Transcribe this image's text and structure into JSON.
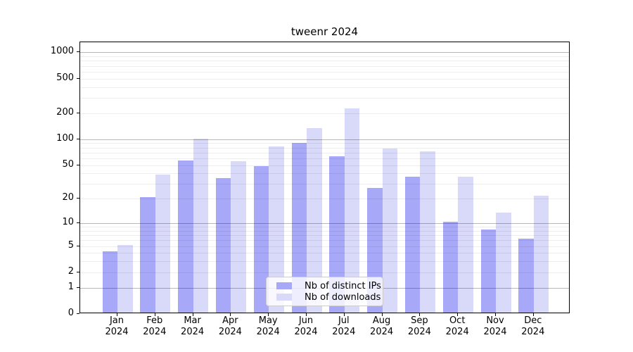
{
  "chart_data": {
    "type": "bar",
    "title": "tweenr 2024",
    "xlabel": "",
    "ylabel": "",
    "y_scale": "log1p",
    "ylim": [
      0,
      1280
    ],
    "grid": true,
    "legend_position": "bottom-center",
    "y_ticks": [
      0,
      1,
      2,
      5,
      10,
      20,
      50,
      100,
      200,
      500,
      1000
    ],
    "major_gridlines": [
      1,
      10,
      100,
      1000
    ],
    "categories": [
      "Jan 2024",
      "Feb 2024",
      "Mar 2024",
      "Apr 2024",
      "May 2024",
      "Jun 2024",
      "Jul 2024",
      "Aug 2024",
      "Sep 2024",
      "Oct 2024",
      "Nov 2024",
      "Dec 2024"
    ],
    "series": [
      {
        "name": "Nb of distinct IPs",
        "color": "#a8a8f8",
        "values": [
          4,
          20,
          54,
          34,
          47,
          88,
          61,
          26,
          35,
          10,
          8,
          6
        ]
      },
      {
        "name": "Nb of downloads",
        "color": "#d9d9f9",
        "values": [
          5,
          37,
          97,
          53,
          80,
          130,
          220,
          75,
          70,
          35,
          13,
          21
        ]
      }
    ]
  }
}
